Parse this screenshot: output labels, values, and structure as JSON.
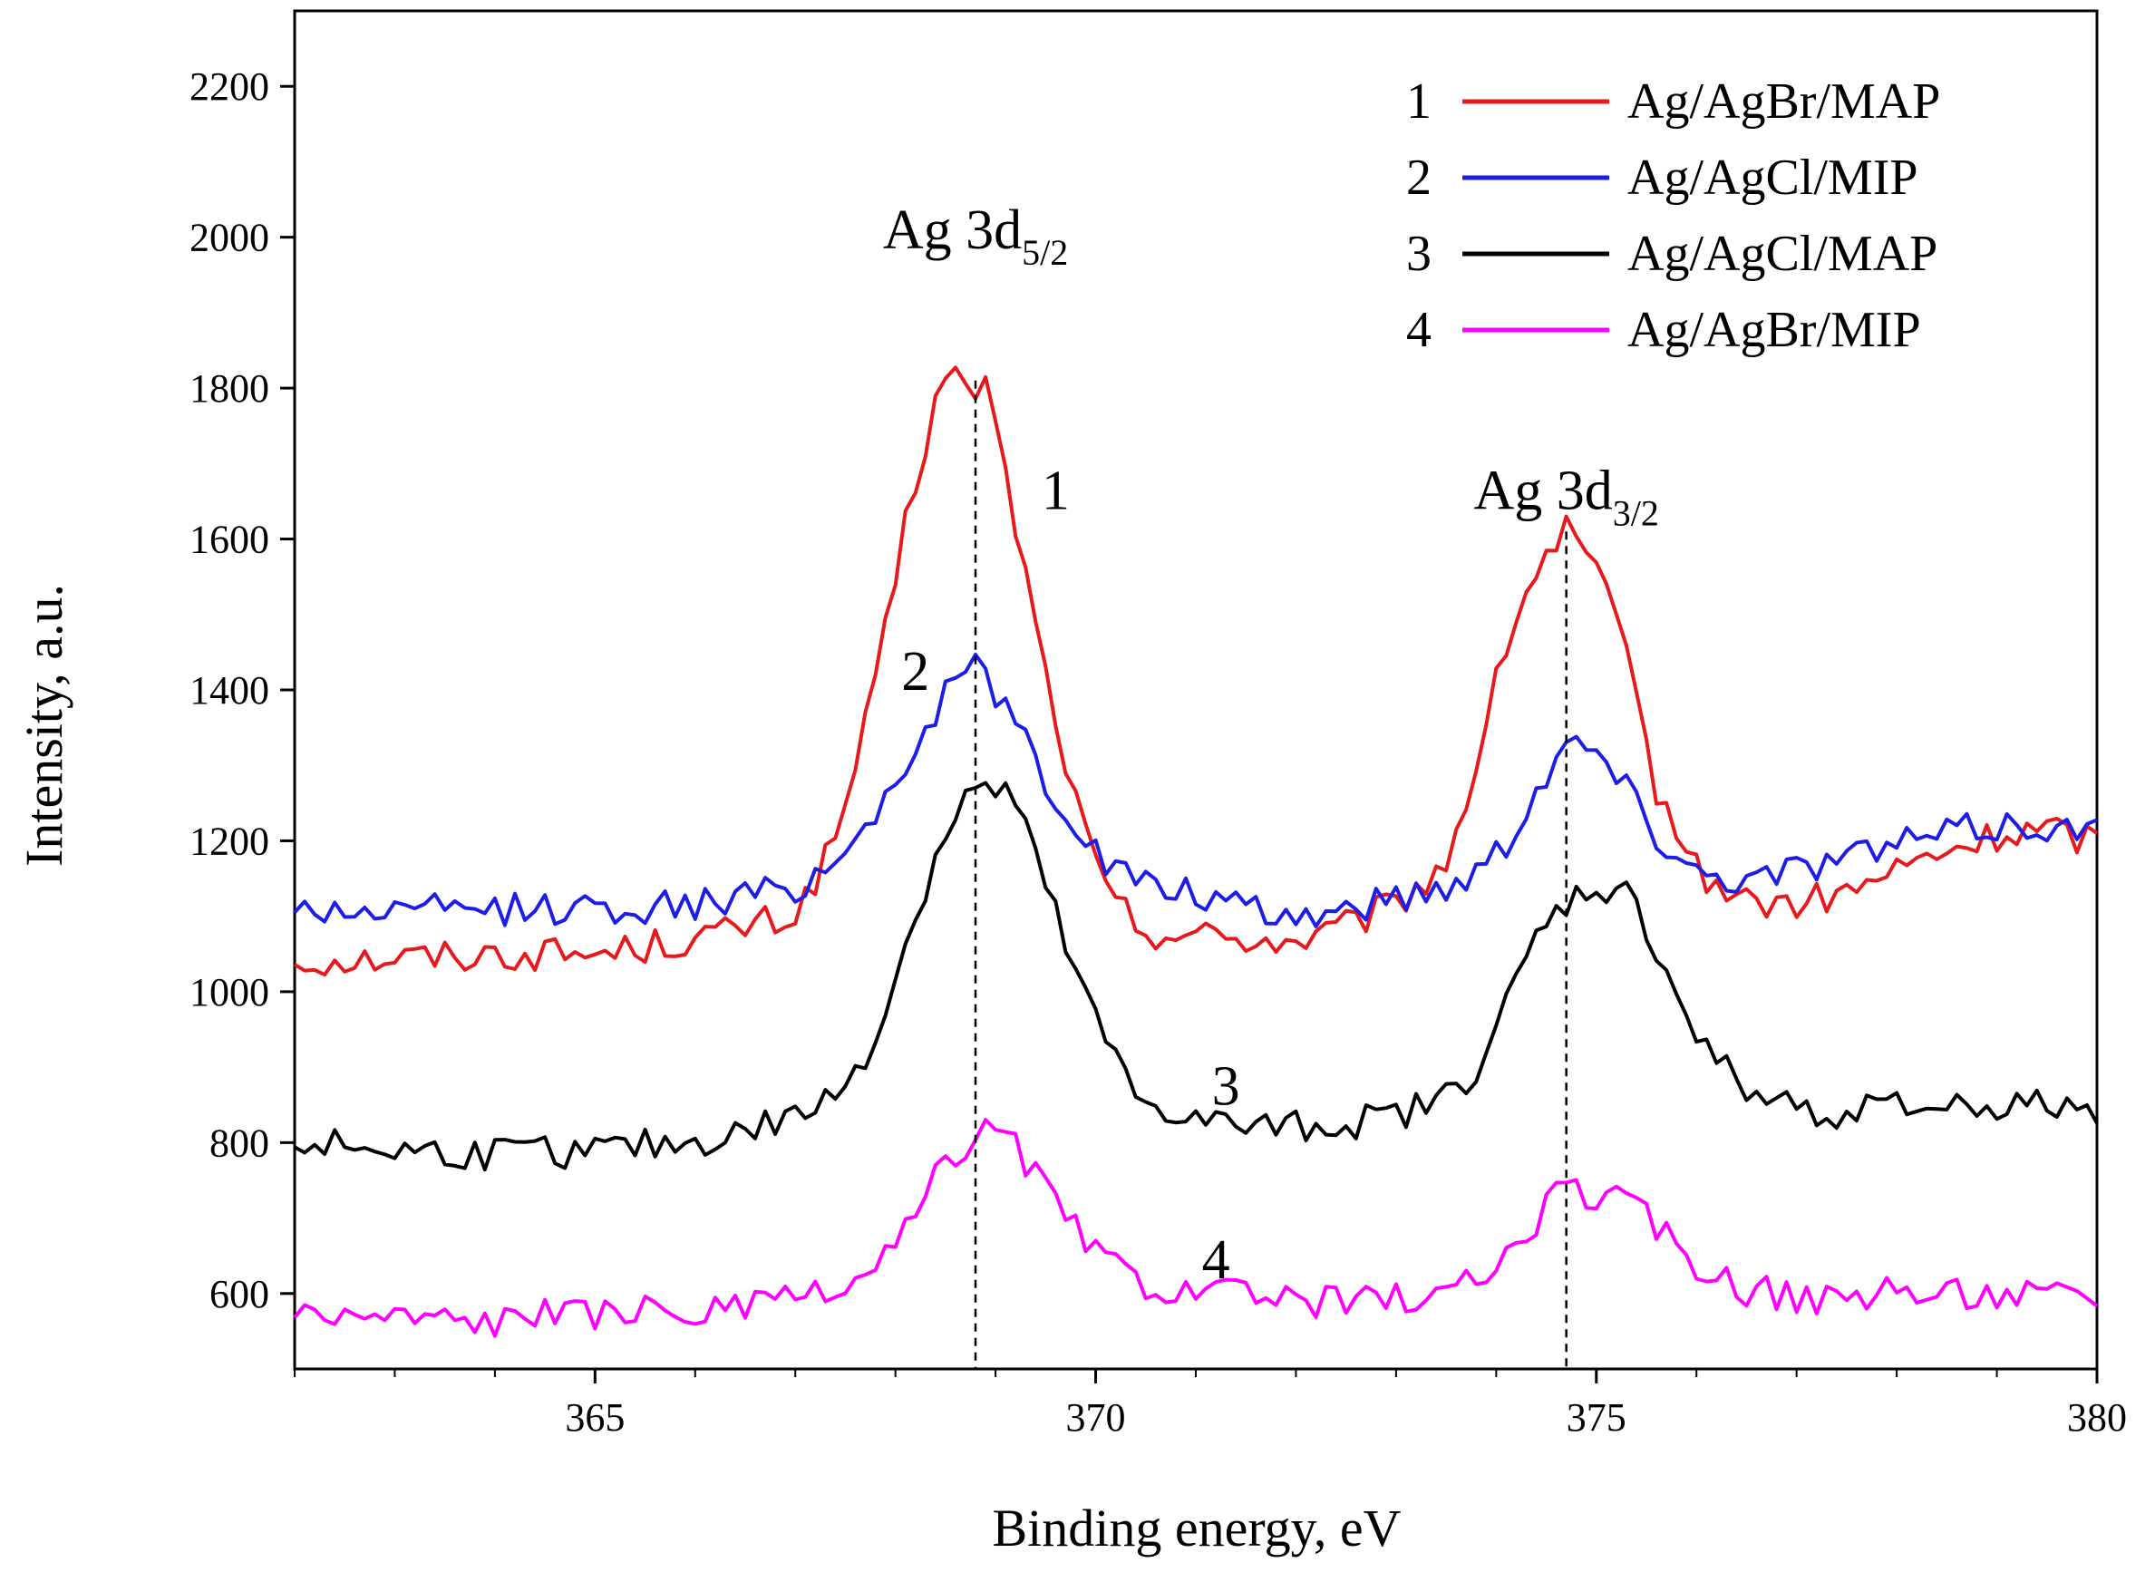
{
  "chart_data": {
    "type": "line",
    "title": "",
    "xlabel": "Binding energy, eV",
    "ylabel": "Intensity, a.u.",
    "xlim": [
      362,
      380
    ],
    "ylim": [
      500,
      2300
    ],
    "x_ticks": [
      365,
      370,
      375,
      380
    ],
    "x_tick_labels": [
      "365",
      "370",
      "375",
      "380"
    ],
    "y_ticks": [
      600,
      800,
      1000,
      1200,
      1400,
      1600,
      1800,
      2000,
      2200
    ],
    "y_tick_labels": [
      "600",
      "800",
      "1000",
      "1200",
      "1400",
      "1600",
      "1800",
      "2000",
      "2200"
    ],
    "grid": false,
    "legend_position": "top-right",
    "series": [
      {
        "number": "1",
        "name": "Ag/AgBr/MAP",
        "color": "#e8191c",
        "x": [
          362,
          363,
          364,
          365,
          366,
          366.5,
          367,
          367.4,
          367.8,
          368.1,
          368.4,
          368.55,
          368.7,
          368.9,
          369.2,
          369.5,
          369.8,
          370.1,
          370.5,
          371,
          371.5,
          372,
          372.5,
          373,
          373.5,
          373.8,
          374.1,
          374.4,
          374.7,
          375,
          375.3,
          375.6,
          376,
          376.5,
          377,
          377.5,
          378,
          378.5,
          379,
          379.5,
          380
        ],
        "y": [
          1040,
          1045,
          1050,
          1050,
          1070,
          1085,
          1100,
          1200,
          1400,
          1620,
          1780,
          1830,
          1790,
          1810,
          1620,
          1420,
          1250,
          1130,
          1080,
          1075,
          1070,
          1065,
          1085,
          1115,
          1170,
          1300,
          1460,
          1560,
          1610,
          1560,
          1440,
          1270,
          1160,
          1120,
          1115,
          1130,
          1160,
          1185,
          1205,
          1215,
          1200
        ]
      },
      {
        "number": "2",
        "name": "Ag/AgCl/MIP",
        "color": "#1d1de8",
        "x": [
          362,
          363,
          364,
          365,
          366,
          366.5,
          367,
          367.4,
          367.8,
          368.1,
          368.4,
          368.7,
          368.9,
          369.2,
          369.5,
          369.8,
          370.1,
          370.5,
          371,
          371.5,
          372,
          372.5,
          373,
          373.5,
          373.8,
          374.1,
          374.4,
          374.7,
          375,
          375.3,
          375.6,
          376,
          376.5,
          377,
          377.5,
          378,
          378.5,
          379,
          379.5,
          380
        ],
        "y": [
          1110,
          1105,
          1110,
          1110,
          1115,
          1125,
          1140,
          1170,
          1240,
          1300,
          1370,
          1435,
          1420,
          1360,
          1280,
          1220,
          1170,
          1140,
          1130,
          1105,
          1100,
          1110,
          1125,
          1140,
          1160,
          1200,
          1270,
          1330,
          1320,
          1270,
          1210,
          1160,
          1150,
          1165,
          1180,
          1195,
          1210,
          1220,
          1220,
          1210
        ]
      },
      {
        "number": "3",
        "name": "Ag/AgCl/MAP",
        "color": "#000000",
        "x": [
          362,
          363,
          364,
          365,
          366,
          366.5,
          367,
          367.4,
          367.8,
          368.1,
          368.4,
          368.7,
          368.9,
          369.1,
          369.4,
          369.7,
          370,
          370.4,
          371,
          371.5,
          372,
          372.5,
          373,
          373.5,
          373.8,
          374.1,
          374.4,
          374.7,
          375,
          375.3,
          375.6,
          376,
          376.5,
          377,
          377.5,
          378,
          378.5,
          379,
          379.5,
          380
        ],
        "y": [
          800,
          790,
          785,
          790,
          800,
          815,
          835,
          860,
          940,
          1060,
          1180,
          1260,
          1265,
          1270,
          1180,
          1060,
          960,
          860,
          830,
          820,
          820,
          825,
          835,
          860,
          900,
          980,
          1070,
          1120,
          1140,
          1130,
          1060,
          940,
          865,
          848,
          840,
          845,
          850,
          850,
          848,
          845
        ]
      },
      {
        "number": "4",
        "name": "Ag/AgBr/MIP",
        "color": "#ff00ff",
        "x": [
          362,
          363,
          364,
          365,
          366,
          366.5,
          367,
          367.4,
          367.8,
          368.1,
          368.4,
          368.7,
          368.9,
          369.1,
          369.4,
          369.7,
          370,
          370.5,
          371,
          371.5,
          372,
          372.5,
          373,
          373.5,
          373.8,
          374.1,
          374.4,
          374.7,
          375,
          375.3,
          375.6,
          376,
          376.5,
          377,
          377.5,
          378,
          378.5,
          379,
          379.5,
          380
        ],
        "y": [
          575,
          570,
          565,
          575,
          575,
          580,
          590,
          600,
          630,
          680,
          750,
          800,
          815,
          810,
          760,
          700,
          650,
          615,
          600,
          595,
          590,
          590,
          595,
          600,
          615,
          650,
          700,
          740,
          730,
          720,
          690,
          640,
          605,
          595,
          595,
          600,
          600,
          600,
          598,
          595
        ]
      }
    ],
    "curve_labels": [
      {
        "text": "1",
        "x": 369.6,
        "y": 1640
      },
      {
        "text": "2",
        "x": 368.2,
        "y": 1400
      },
      {
        "text": "3",
        "x": 371.3,
        "y": 850
      },
      {
        "text": "4",
        "x": 371.2,
        "y": 620
      }
    ],
    "annotations": [
      {
        "text": "Ag 3d",
        "subscript": "5/2",
        "x": 368.8,
        "y": 1985,
        "line_x": 368.8,
        "line_y_top": 1810
      },
      {
        "text": "Ag 3d",
        "subscript": "3/2",
        "x": 374.7,
        "y": 1640,
        "line_x": 374.7,
        "line_y_top": 1610
      }
    ]
  }
}
